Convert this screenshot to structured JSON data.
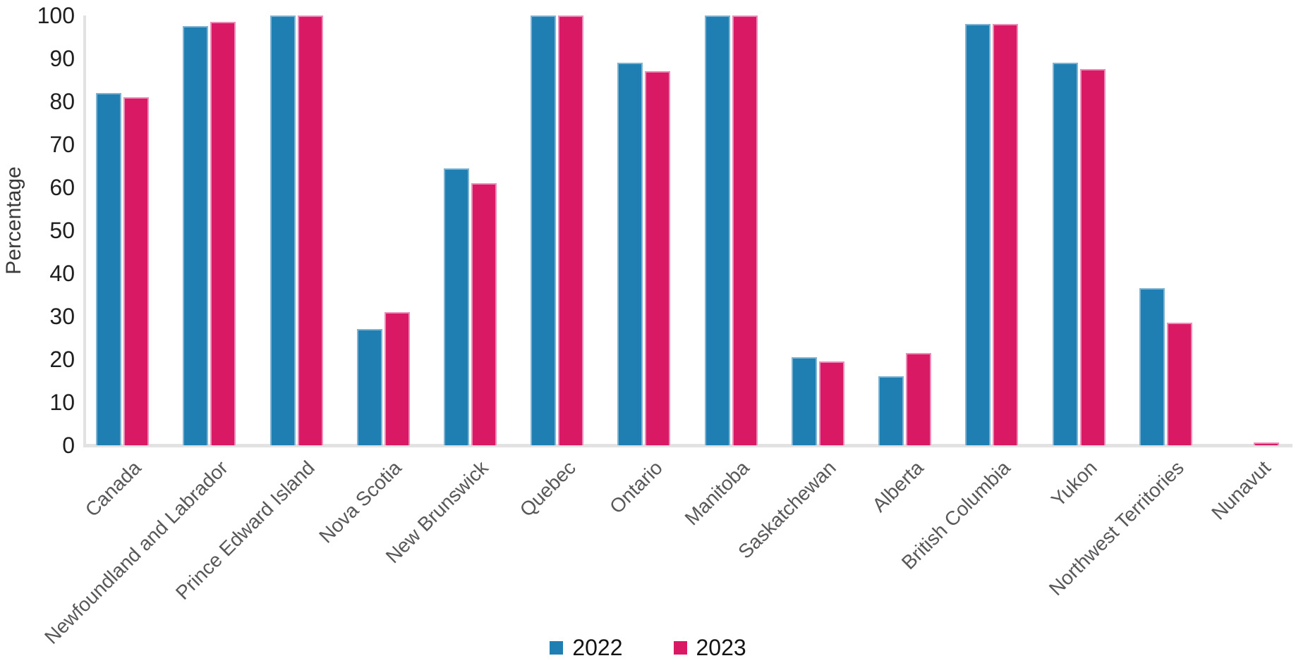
{
  "chart_data": {
    "type": "bar",
    "title": "",
    "xlabel": "",
    "ylabel": "Percentage",
    "ylim": [
      0,
      100
    ],
    "yticks": [
      0,
      10,
      20,
      30,
      40,
      50,
      60,
      70,
      80,
      90,
      100
    ],
    "grid": "off",
    "legend_position": "bottom",
    "categories": [
      "Canada",
      "Newfoundland and Labrador",
      "Prince Edward Island",
      "Nova Scotia",
      "New Brunswick",
      "Quebec",
      "Ontario",
      "Manitoba",
      "Saskatchewan",
      "Alberta",
      "British Columbia",
      "Yukon",
      "Northwest Territories",
      "Nunavut"
    ],
    "series": [
      {
        "name": "2022",
        "color": "#1f7fb2",
        "stroke": "#7eb3d2",
        "values": [
          82,
          97.5,
          100,
          27,
          64.5,
          100,
          89,
          100,
          20.5,
          16,
          98,
          89,
          36.5,
          0
        ]
      },
      {
        "name": "2023",
        "color": "#d91963",
        "stroke": "#ec8cb8",
        "values": [
          81,
          98.5,
          100,
          31,
          61,
          100,
          87,
          100,
          19.5,
          21.5,
          98,
          87.5,
          28.5,
          0.6
        ]
      }
    ]
  },
  "axis": {
    "y_title": "Percentage"
  },
  "legend": {
    "items": [
      "2022",
      "2023"
    ]
  }
}
